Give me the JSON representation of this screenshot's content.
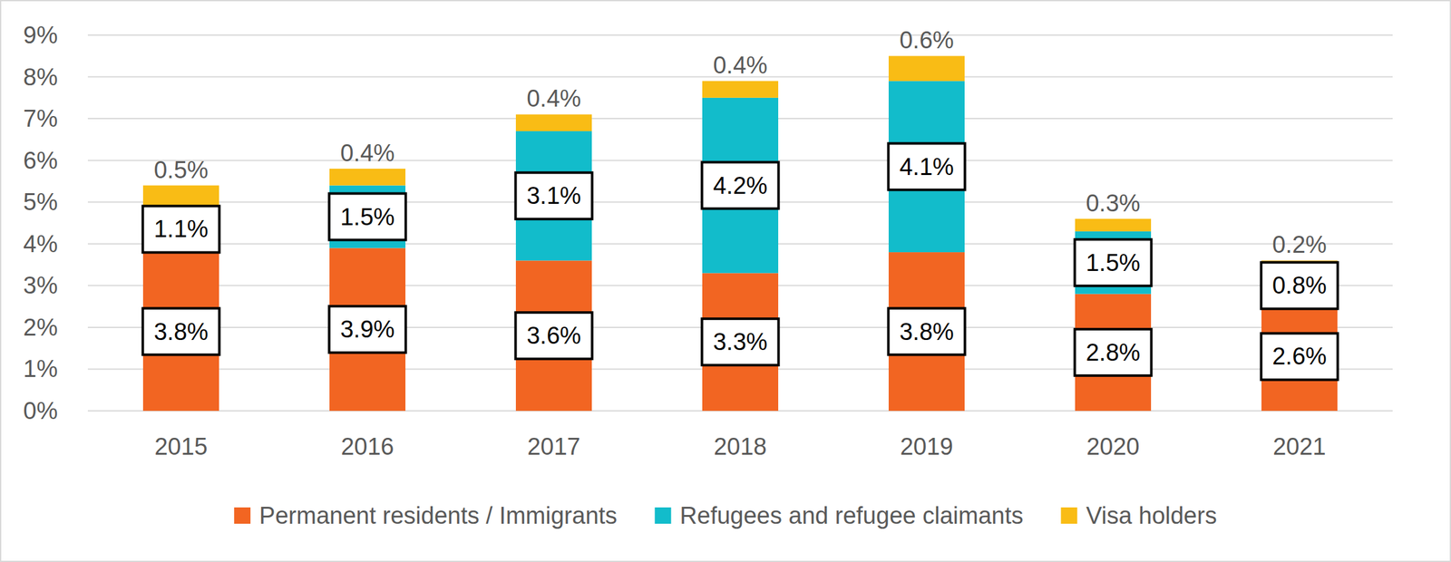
{
  "chart_data": {
    "type": "bar",
    "stacked": true,
    "data_labels": true,
    "grid": true,
    "legend": "bottom",
    "categories": [
      "2015",
      "2016",
      "2017",
      "2018",
      "2019",
      "2020",
      "2021"
    ],
    "series": [
      {
        "name": "Permanent residents / Immigrants",
        "color": "#f26522",
        "values": [
          3.8,
          3.9,
          3.6,
          3.3,
          3.8,
          2.8,
          2.6
        ],
        "value_labels": [
          "3.8%",
          "3.9%",
          "3.6%",
          "3.3%",
          "3.8%",
          "2.8%",
          "2.6%"
        ]
      },
      {
        "name": "Refugees and refugee claimants",
        "color": "#12bccb",
        "values": [
          1.1,
          1.5,
          3.1,
          4.2,
          4.1,
          1.5,
          0.8
        ],
        "value_labels": [
          "1.1%",
          "1.5%",
          "3.1%",
          "4.2%",
          "4.1%",
          "1.5%",
          "0.8%"
        ]
      },
      {
        "name": "Visa holders",
        "color": "#f9bc15",
        "values": [
          0.5,
          0.4,
          0.4,
          0.4,
          0.6,
          0.3,
          0.2
        ],
        "value_labels": [
          "0.5%",
          "0.4%",
          "0.4%",
          "0.4%",
          "0.6%",
          "0.3%",
          "0.2%"
        ]
      }
    ],
    "ylim": [
      0,
      9
    ],
    "yticks": [
      {
        "value": 0,
        "label": "0%"
      },
      {
        "value": 1,
        "label": "1%"
      },
      {
        "value": 2,
        "label": "2%"
      },
      {
        "value": 3,
        "label": "3%"
      },
      {
        "value": 4,
        "label": "4%"
      },
      {
        "value": 5,
        "label": "5%"
      },
      {
        "value": 6,
        "label": "6%"
      },
      {
        "value": 7,
        "label": "7%"
      },
      {
        "value": 8,
        "label": "8%"
      },
      {
        "value": 9,
        "label": "9%"
      }
    ]
  }
}
